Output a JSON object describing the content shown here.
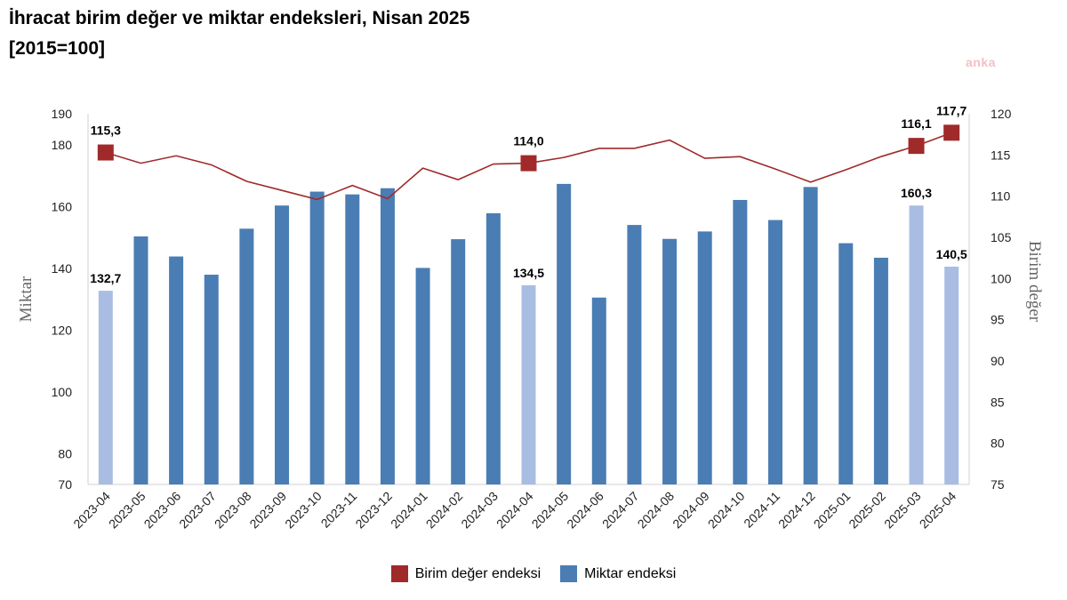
{
  "title_line1": "İhracat birim değer ve miktar endeksleri, Nisan 2025",
  "title_line2": "[2015=100]",
  "watermark": "anka",
  "colors": {
    "bar": "#4a7db3",
    "bar_highlight": "#a9bde3",
    "line": "#a02a2a",
    "marker": "#a02a2a"
  },
  "chart_data": {
    "type": "bar+line",
    "categories": [
      "2023-04",
      "2023-05",
      "2023-06",
      "2023-07",
      "2023-08",
      "2023-09",
      "2023-10",
      "2023-11",
      "2023-12",
      "2024-01",
      "2024-02",
      "2024-03",
      "2024-04",
      "2024-05",
      "2024-06",
      "2024-07",
      "2024-08",
      "2024-09",
      "2024-10",
      "2024-11",
      "2024-12",
      "2025-01",
      "2025-02",
      "2025-03",
      "2025-04"
    ],
    "series": [
      {
        "name": "Miktar endeksi",
        "type": "bar",
        "axis": "left",
        "values": [
          132.7,
          150.3,
          143.8,
          137.9,
          152.8,
          160.3,
          164.8,
          163.9,
          165.9,
          140.1,
          149.4,
          157.8,
          134.5,
          167.3,
          130.5,
          154.0,
          149.5,
          151.9,
          162.1,
          155.6,
          166.3,
          148.1,
          143.4,
          160.3,
          140.5
        ],
        "highlight_indices": [
          0,
          12,
          23,
          24
        ],
        "labels": {
          "0": "132,7",
          "12": "134,5",
          "23": "160,3",
          "24": "140,5"
        }
      },
      {
        "name": "Birim değer endeksi",
        "type": "line",
        "axis": "right",
        "values": [
          115.3,
          114.0,
          114.9,
          113.8,
          111.8,
          110.7,
          109.6,
          111.3,
          109.7,
          113.4,
          112.0,
          113.9,
          114.0,
          114.7,
          115.8,
          115.8,
          116.8,
          114.6,
          114.8,
          113.3,
          111.7,
          113.2,
          114.8,
          116.1,
          117.7
        ],
        "marker_indices": [
          0,
          12,
          23,
          24
        ],
        "labels": {
          "0": "115,3",
          "12": "114,0",
          "23": "116,1",
          "24": "117,7"
        }
      }
    ],
    "y_left": {
      "label": "Miktar",
      "ylim": [
        70,
        190
      ],
      "ticks": [
        70,
        80,
        100,
        120,
        140,
        160,
        180,
        190
      ]
    },
    "y_right": {
      "label": "Birim değer",
      "ylim": [
        75,
        120
      ],
      "ticks": [
        75,
        80,
        85,
        90,
        95,
        100,
        105,
        110,
        115,
        120
      ]
    },
    "legend": [
      "Birim değer endeksi",
      "Miktar endeksi"
    ]
  }
}
